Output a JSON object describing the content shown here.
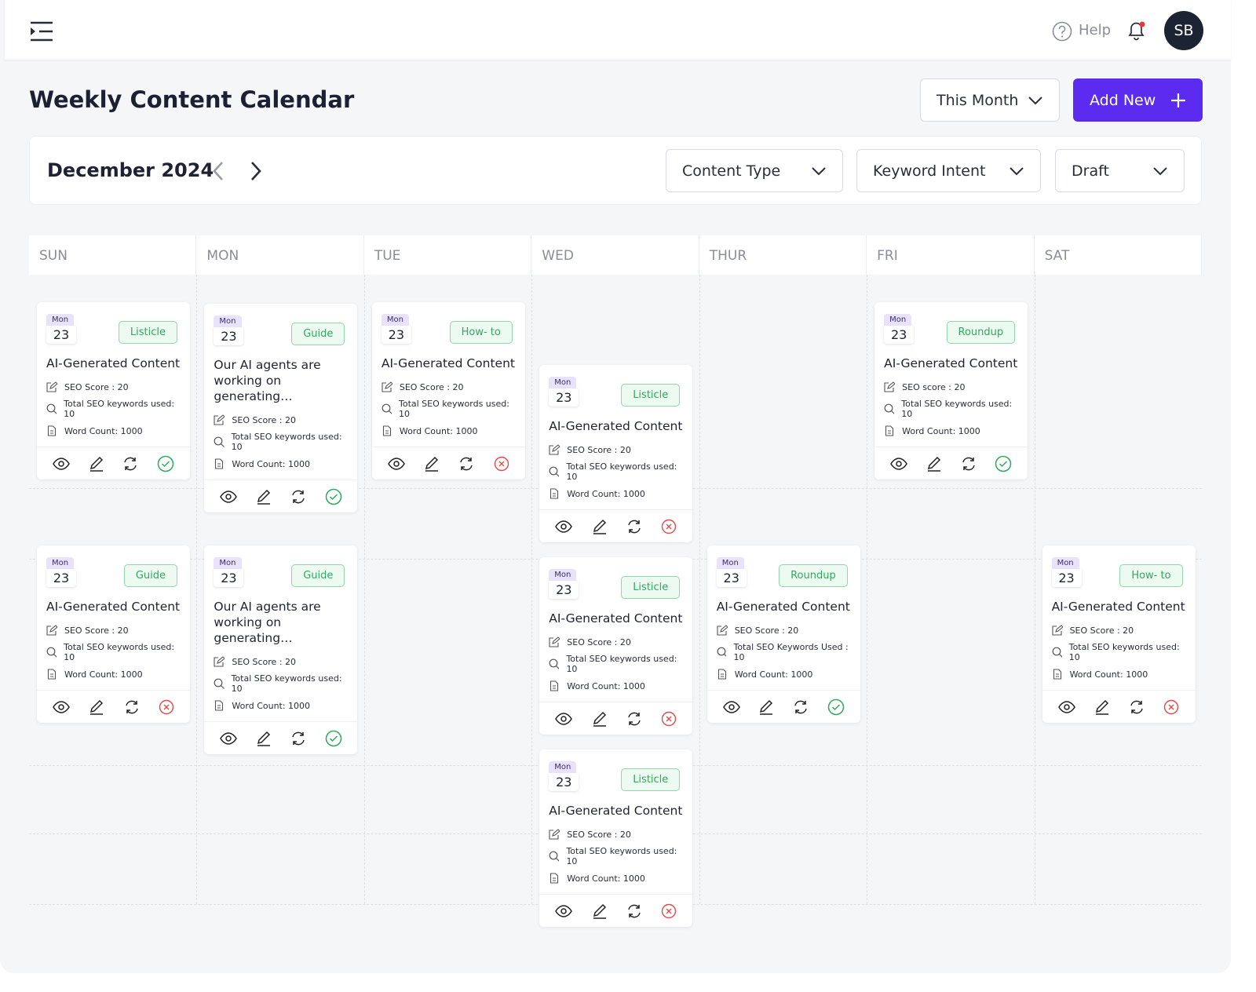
{
  "header": {
    "help": "Help",
    "avatar": "SB"
  },
  "toolbar": {
    "title": "Weekly Content Calendar",
    "period": "This Month",
    "add_button": "Add New"
  },
  "filters": {
    "month": "December 2024",
    "content_type": "Content Type",
    "keyword_intent": "Keyword Intent",
    "status": "Draft"
  },
  "calendar": {
    "columns": [
      {
        "day": "SUN",
        "cards": [
          {
            "weekday": "Mon",
            "date": "23",
            "tag": "Listicle",
            "title": "AI-Generated Content",
            "lines": [
              "SEO Score : 20",
              "Total SEO keywords used: 10",
              "Word Count: 1000"
            ],
            "approved": true
          },
          {
            "weekday": "Mon",
            "date": "23",
            "tag": "Guide",
            "title": "AI-Generated Content",
            "lines": [
              "SEO Score : 20",
              "Total SEO keywords used: 10",
              "Word Count: 1000"
            ],
            "approved": false
          }
        ]
      },
      {
        "day": "MON",
        "cards": [
          {
            "weekday": "Mon",
            "date": "23",
            "tag": "Guide",
            "title": "Our AI agents are working on generating…",
            "lines": [
              "SEO Score : 20",
              "Total SEO keywords used: 10",
              "Word Count: 1000"
            ],
            "approved": true
          },
          {
            "weekday": "Mon",
            "date": "23",
            "tag": "Guide",
            "title": "Our AI agents are working on generating…",
            "lines": [
              "SEO Score : 20",
              "Total SEO keywords used: 10",
              "Word Count: 1000"
            ],
            "approved": true
          }
        ]
      },
      {
        "day": "TUE",
        "cards": [
          {
            "weekday": "Mon",
            "date": "23",
            "tag": "How- to",
            "title": "AI-Generated Content",
            "lines": [
              "SEO Score : 20",
              "Total SEO keywords used: 10",
              "Word Count: 1000"
            ],
            "approved": false
          }
        ]
      },
      {
        "day": "WED",
        "cards": [
          {
            "weekday": "Mon",
            "date": "23",
            "tag": "Listicle",
            "title": "AI-Generated Content",
            "lines": [
              "SEO Score : 20",
              "Total SEO keywords used: 10",
              "Word Count: 1000"
            ],
            "approved": false
          },
          {
            "weekday": "Mon",
            "date": "23",
            "tag": "Listicle",
            "title": "AI-Generated Content",
            "lines": [
              "SEO Score : 20",
              "Total SEO keywords used: 10",
              "Word Count: 1000"
            ],
            "approved": false
          },
          {
            "weekday": "Mon",
            "date": "23",
            "tag": "Listicle",
            "title": "AI-Generated Content",
            "lines": [
              "SEO Score : 20",
              "Total SEO keywords used: 10",
              "Word Count: 1000"
            ],
            "approved": false
          }
        ]
      },
      {
        "day": "THUR",
        "cards": [
          {
            "weekday": "Mon",
            "date": "23",
            "tag": "Roundup",
            "title": "AI-Generated Content",
            "lines": [
              "SEO Score : 20",
              "Total SEO Keywords Used : 10",
              "Word Count: 1000"
            ],
            "approved": true
          }
        ]
      },
      {
        "day": "FRI",
        "cards": [
          {
            "weekday": "Mon",
            "date": "23",
            "tag": "Roundup",
            "title": "AI-Generated Content",
            "lines": [
              "SEO score : 20",
              "Total SEO keywords used: 10",
              "Word Count: 1000"
            ],
            "approved": true
          }
        ]
      },
      {
        "day": "SAT",
        "cards": [
          {
            "weekday": "Mon",
            "date": "23",
            "tag": "How- to",
            "title": "AI-Generated Content",
            "lines": [
              "SEO Score : 20",
              "Total SEO keywords used: 10",
              "Word Count: 1000"
            ],
            "approved": false
          }
        ]
      }
    ]
  }
}
